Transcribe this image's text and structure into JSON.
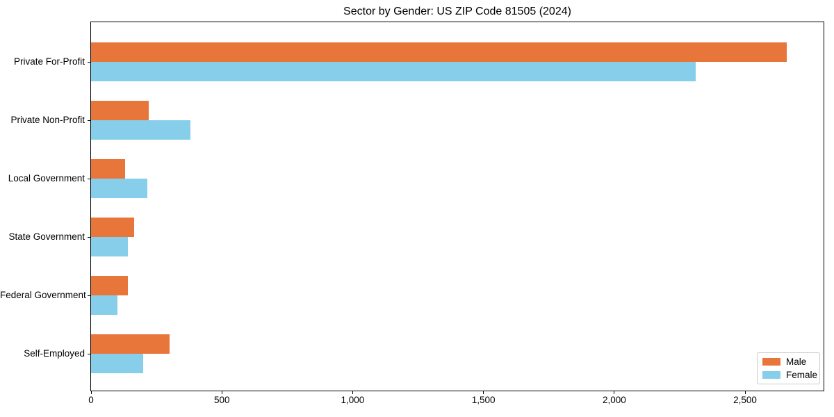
{
  "chart_data": {
    "type": "bar",
    "orientation": "horizontal",
    "title": "Sector by Gender: US ZIP Code 81505 (2024)",
    "categories": [
      "Private For-Profit",
      "Private Non-Profit",
      "Local Government",
      "State Government",
      "Federal Government",
      "Self-Employed"
    ],
    "series": [
      {
        "name": "Male",
        "color": "#e8763b",
        "values": [
          2660,
          220,
          130,
          165,
          140,
          300
        ]
      },
      {
        "name": "Female",
        "color": "#87ceeb",
        "values": [
          2310,
          380,
          215,
          140,
          100,
          200
        ]
      }
    ],
    "xlabel": "",
    "ylabel": "",
    "xlim": [
      0,
      2800
    ],
    "xticks": {
      "values": [
        0,
        500,
        1000,
        1500,
        2000,
        2500
      ],
      "labels": [
        "0",
        "500",
        "1,000",
        "1,500",
        "2,000",
        "2,500"
      ]
    },
    "legend": {
      "position": "lower right",
      "entries": [
        "Male",
        "Female"
      ]
    },
    "grid": false,
    "axis_color": "#000000",
    "background_color": "#ffffff"
  }
}
